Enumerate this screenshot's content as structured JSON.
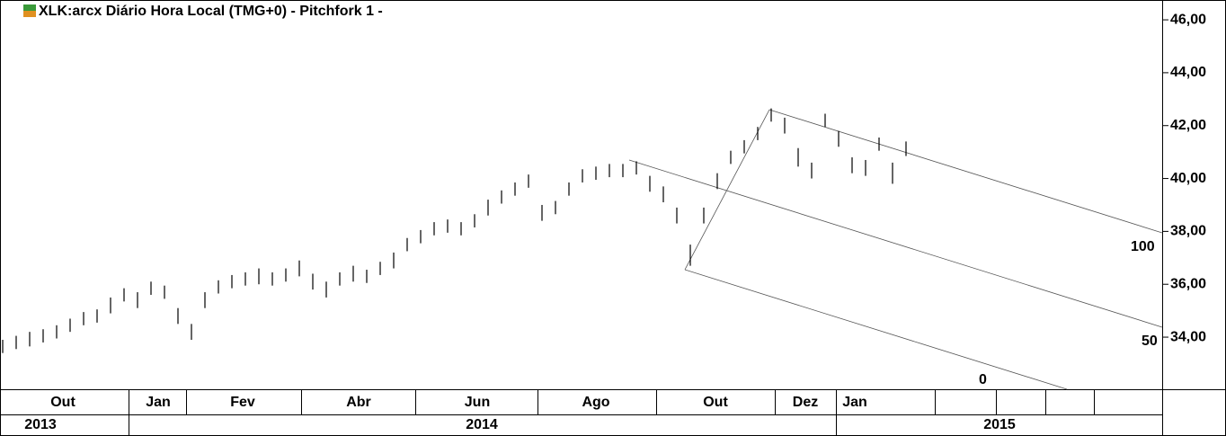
{
  "chart_data": {
    "type": "ohlc",
    "title": "XLK:arcx Diário Hora Local (TMG+0)  -  Pitchfork 1 -",
    "color": "#000000",
    "high": [
      33.9,
      34.05,
      34.2,
      34.3,
      34.45,
      34.7,
      34.95,
      35.05,
      35.5,
      35.85,
      35.7,
      36.1,
      35.95,
      35.1,
      34.5,
      35.7,
      36.15,
      36.35,
      36.45,
      36.6,
      36.45,
      36.6,
      36.9,
      36.4,
      36.1,
      36.45,
      36.7,
      36.55,
      36.85,
      37.2,
      37.75,
      38.05,
      38.35,
      38.45,
      38.35,
      38.65,
      39.2,
      39.55,
      39.85,
      40.15,
      39.0,
      39.15,
      39.85,
      40.35,
      40.45,
      40.55,
      40.55,
      40.65,
      40.1,
      39.7,
      38.9,
      37.5,
      38.9,
      40.2,
      41.05,
      41.45,
      41.95,
      42.65,
      42.3,
      41.15,
      40.6,
      42.45,
      41.8,
      40.8,
      40.7,
      41.55,
      40.6,
      41.4
    ],
    "low": [
      33.4,
      33.55,
      33.65,
      33.8,
      33.95,
      34.2,
      34.45,
      34.55,
      34.9,
      35.35,
      35.1,
      35.6,
      35.45,
      34.5,
      33.9,
      35.1,
      35.65,
      35.85,
      35.95,
      36.0,
      35.95,
      36.1,
      36.3,
      35.8,
      35.5,
      35.95,
      36.1,
      36.05,
      36.35,
      36.6,
      37.25,
      37.55,
      37.85,
      37.95,
      37.85,
      38.15,
      38.6,
      39.05,
      39.35,
      39.65,
      38.4,
      38.65,
      39.35,
      39.85,
      39.95,
      40.05,
      40.05,
      40.15,
      39.5,
      39.1,
      38.3,
      36.7,
      38.3,
      39.6,
      40.55,
      40.95,
      41.45,
      42.15,
      41.7,
      40.45,
      40.0,
      41.95,
      41.2,
      40.2,
      40.1,
      41.05,
      39.8,
      40.85
    ],
    "ylim": [
      32.03,
      46.75
    ],
    "yticks": [
      {
        "value": 34,
        "label": "34,00"
      },
      {
        "value": 36,
        "label": "36,00"
      },
      {
        "value": 38,
        "label": "38,00"
      },
      {
        "value": 40,
        "label": "40,00"
      },
      {
        "value": 42,
        "label": "42,00"
      },
      {
        "value": 44,
        "label": "44,00"
      },
      {
        "value": 46,
        "label": "46,00"
      }
    ],
    "months": [
      "Out",
      "Jan",
      "Fev",
      "Abr",
      "Jun",
      "Ago",
      "Out",
      "Dez",
      "Jan"
    ],
    "years": [
      "2013",
      "2014",
      "2015"
    ],
    "pitchfork_levels": [
      "100",
      "50",
      "0"
    ]
  }
}
